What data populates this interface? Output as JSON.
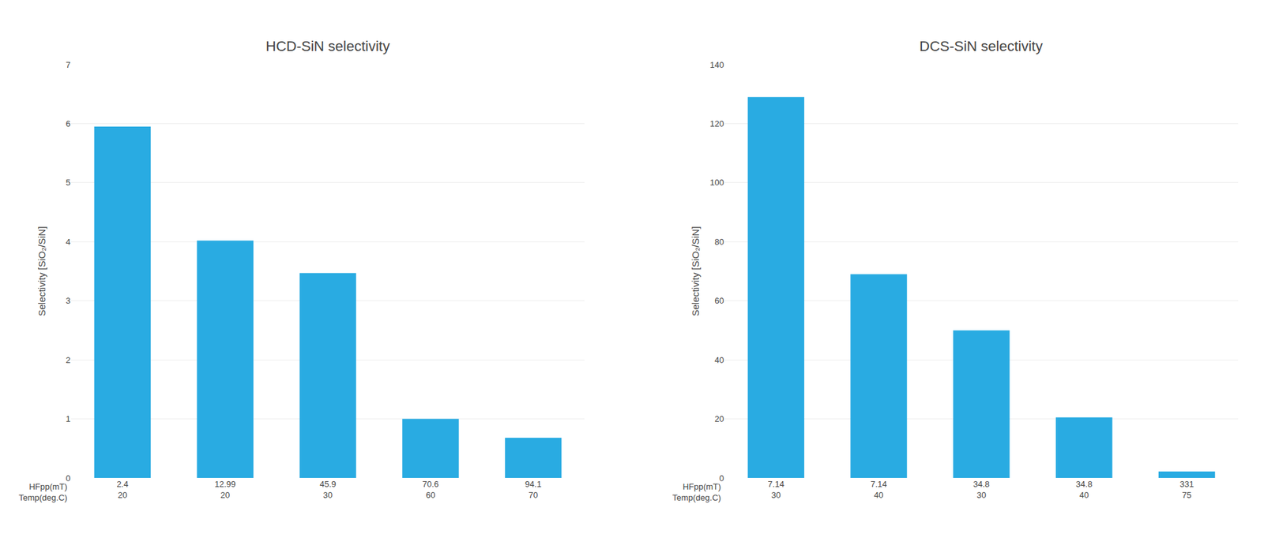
{
  "chart_data": [
    {
      "type": "bar",
      "title": "HCD-SiN selectivity",
      "categories": [
        [
          "2.4",
          "20"
        ],
        [
          "12.99",
          "20"
        ],
        [
          "45.9",
          "30"
        ],
        [
          "70.6",
          "60"
        ],
        [
          "94.1",
          "70"
        ]
      ],
      "xlabel": [
        "HFpp(mT)",
        "Temp(deg.C)"
      ],
      "ylabel": "Selectivity [SiO₂/SiN]",
      "values": [
        5.95,
        4.02,
        3.47,
        1.0,
        0.68
      ],
      "color": "#29ABE2",
      "ylim": [
        0,
        7
      ],
      "yticks": [
        0,
        1,
        2,
        3,
        4,
        5,
        6,
        7
      ],
      "grid": true
    },
    {
      "type": "bar",
      "title": "DCS-SiN selectivity",
      "categories": [
        [
          "7.14",
          "30"
        ],
        [
          "7.14",
          "40"
        ],
        [
          "34.8",
          "30"
        ],
        [
          "34.8",
          "40"
        ],
        [
          "331",
          "75"
        ]
      ],
      "xlabel": [
        "HFpp(mT)",
        "Temp(deg.C)"
      ],
      "ylabel": "Selectivity [SiO₂/SiN]",
      "values": [
        129,
        69,
        50,
        20.5,
        2.2
      ],
      "color": "#29ABE2",
      "ylim": [
        0,
        140
      ],
      "yticks": [
        0,
        20,
        40,
        60,
        80,
        100,
        120,
        140
      ],
      "grid": true
    }
  ]
}
